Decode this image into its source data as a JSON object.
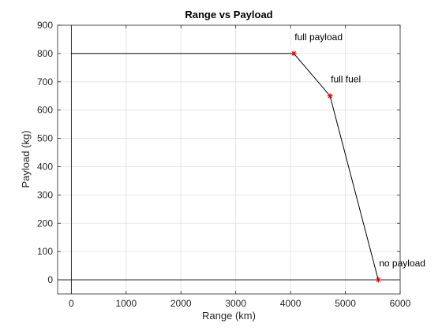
{
  "chart_data": {
    "type": "line",
    "title": "Range vs Payload",
    "xlabel": "Range (km)",
    "ylabel": "Payload (kg)",
    "xlim": [
      -250,
      6000
    ],
    "ylim": [
      -50,
      900
    ],
    "xticks": [
      0,
      1000,
      2000,
      3000,
      4000,
      5000,
      6000
    ],
    "yticks": [
      0,
      100,
      200,
      300,
      400,
      500,
      600,
      700,
      800,
      900
    ],
    "grid": true,
    "series": [
      {
        "x": [
          0,
          4060,
          4720,
          5600
        ],
        "y": [
          800,
          800,
          650,
          0
        ],
        "color": "#000000"
      }
    ],
    "markers": {
      "x": [
        4060,
        4720,
        5600
      ],
      "y": [
        800,
        650,
        0
      ],
      "symbol": "asterisk",
      "color": "#cc0000"
    },
    "reference_lines": {
      "x0": 0,
      "y0": 0,
      "color": "#000000"
    },
    "annotations": [
      {
        "text": "full payload",
        "x": 4060,
        "y": 800
      },
      {
        "text": "full fuel",
        "x": 4720,
        "y": 650
      },
      {
        "text": "no payload",
        "x": 5600,
        "y": 0
      }
    ]
  }
}
